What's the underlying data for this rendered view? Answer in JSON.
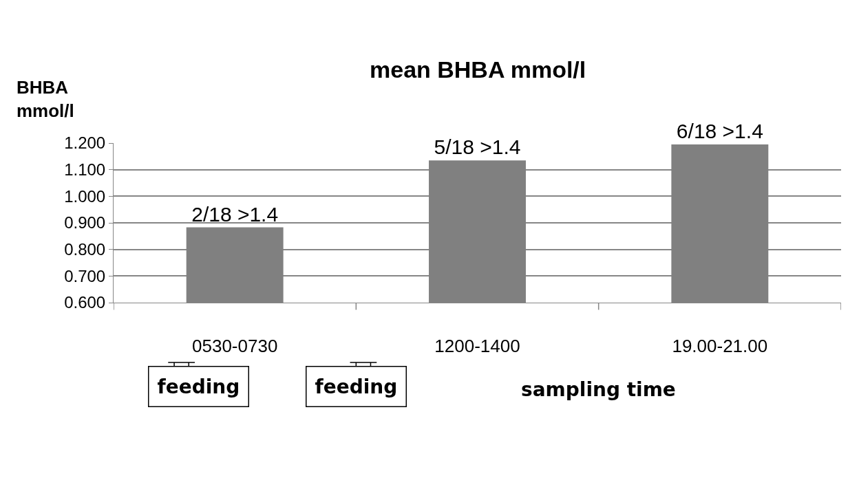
{
  "chart_data": {
    "type": "bar",
    "title": "mean BHBA mmol/l",
    "ylabel": "BHBA mmol/l",
    "xlabel": "sampling time",
    "categories": [
      "0530-0730",
      "1200-1400",
      "19.00-21.00"
    ],
    "values": [
      0.883,
      1.135,
      1.195
    ],
    "color": "#808080",
    "value_labels": [
      "2/18 >1.4",
      "5/18 >1.4",
      "6/18 >1.4"
    ],
    "ylim": [
      0.6,
      1.2
    ],
    "yticks": [
      {
        "value": 0.6,
        "label": "0.600"
      },
      {
        "value": 0.7,
        "label": "0.700"
      },
      {
        "value": 0.8,
        "label": "0.800"
      },
      {
        "value": 0.9,
        "label": "0.900"
      },
      {
        "value": 1.0,
        "label": "1.000"
      },
      {
        "value": 1.1,
        "label": "1.100"
      },
      {
        "value": 1.2,
        "label": "1.200"
      }
    ],
    "grid": "y",
    "annotations": [
      "feeding",
      "feeding"
    ]
  }
}
